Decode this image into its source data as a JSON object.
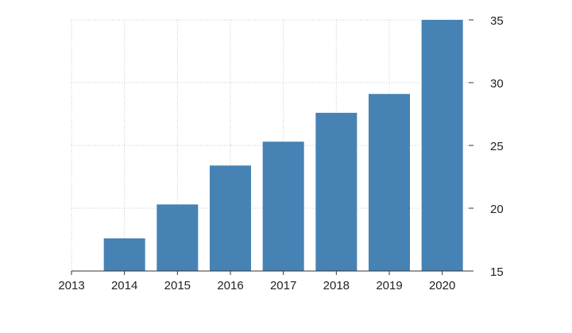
{
  "chart_data": {
    "type": "bar",
    "title": "",
    "xlabel": "",
    "ylabel": "",
    "x_ticks": [
      "2013",
      "2014",
      "2015",
      "2016",
      "2017",
      "2018",
      "2019",
      "2020"
    ],
    "categories": [
      "2014",
      "2015",
      "2016",
      "2017",
      "2018",
      "2019",
      "2020"
    ],
    "values": [
      17.6,
      20.3,
      23.4,
      25.3,
      27.6,
      29.1,
      35.0
    ],
    "ylim": [
      15,
      35
    ],
    "y_ticks": [
      15,
      20,
      25,
      30,
      35
    ],
    "y_axis_side": "right",
    "grid": true,
    "legend": "none",
    "colors": {
      "bar": "#4682b4",
      "grid": "#c8c8c8",
      "axis": "#333333"
    }
  }
}
